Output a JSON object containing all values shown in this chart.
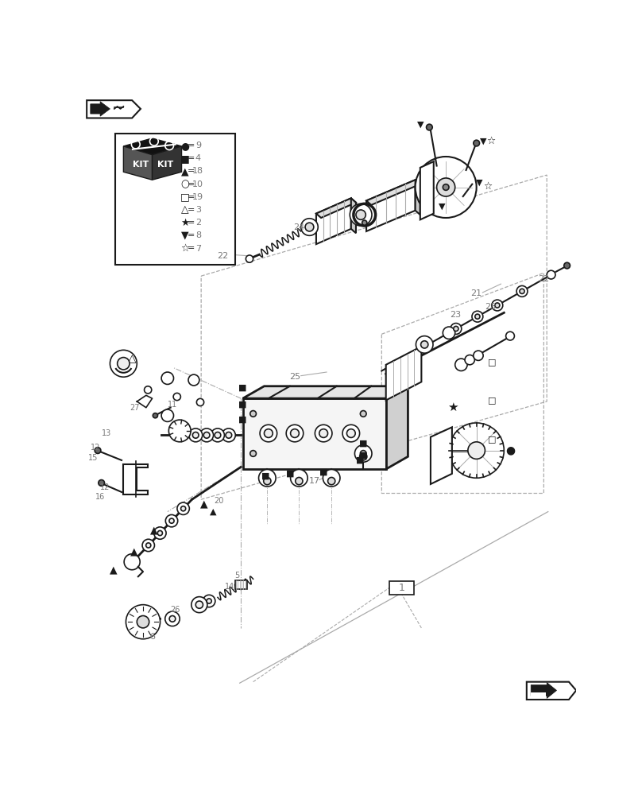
{
  "bg_color": "#ffffff",
  "lc": "#1a1a1a",
  "gc": "#777777",
  "lgc": "#aaaaaa",
  "legend_symbols": [
    "●",
    "■",
    "▲",
    "○",
    "□",
    "△",
    "★",
    "▼",
    "☆"
  ],
  "legend_values": [
    "9",
    "4",
    "18",
    "10",
    "19",
    "3",
    "2",
    "8",
    "7"
  ]
}
